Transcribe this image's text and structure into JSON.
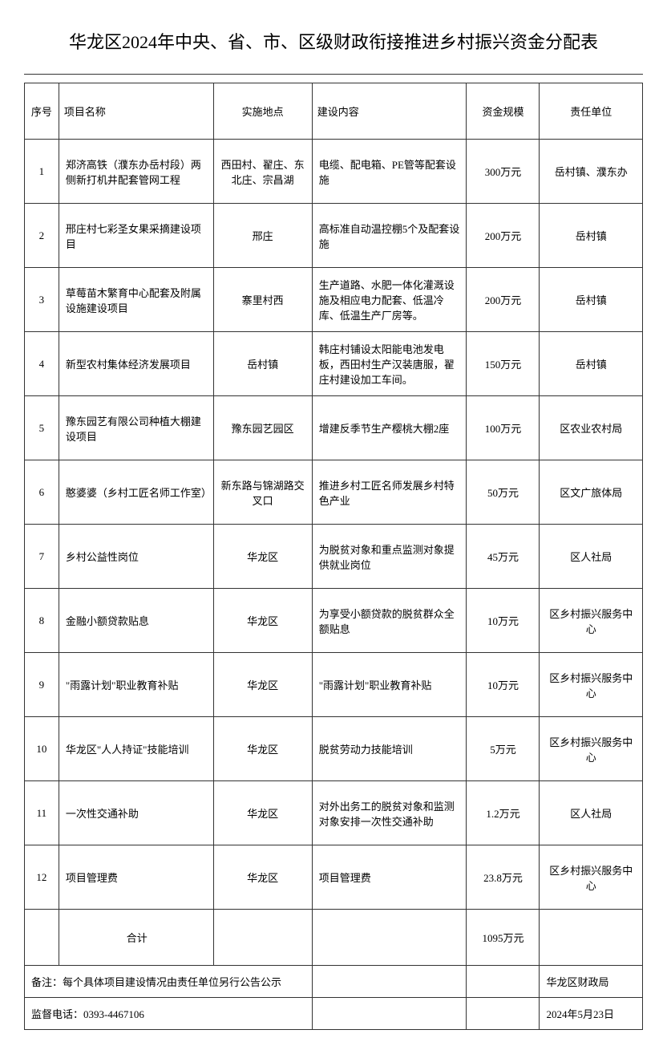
{
  "title": "华龙区2024年中央、省、市、区级财政衔接推进乡村振兴资金分配表",
  "headers": {
    "num": "序号",
    "name": "项目名称",
    "loc": "实施地点",
    "content": "建设内容",
    "amount": "资金规模",
    "dept": "责任单位"
  },
  "rows": [
    {
      "num": "1",
      "name": "郑济高铁（濮东办岳村段）两侧新打机井配套管网工程",
      "loc": "西田村、翟庄、东北庄、宗昌湖",
      "content": "电缆、配电箱、PE管等配套设施",
      "amount": "300万元",
      "dept": "岳村镇、濮东办"
    },
    {
      "num": "2",
      "name": "邢庄村七彩圣女果采摘建设项目",
      "loc": "邢庄",
      "content": "高标准自动温控棚5个及配套设施",
      "amount": "200万元",
      "dept": "岳村镇"
    },
    {
      "num": "3",
      "name": "草莓苗木繁育中心配套及附属设施建设项目",
      "loc": "寨里村西",
      "content": "生产道路、水肥一体化灌溉设施及相应电力配套、低温冷库、低温生产厂房等。",
      "amount": "200万元",
      "dept": "岳村镇"
    },
    {
      "num": "4",
      "name": "新型农村集体经济发展项目",
      "loc": "岳村镇",
      "content": "韩庄村铺设太阳能电池发电板，西田村生产汉装唐服，翟庄村建设加工车间。",
      "amount": "150万元",
      "dept": "岳村镇"
    },
    {
      "num": "5",
      "name": "豫东园艺有限公司种植大棚建设项目",
      "loc": "豫东园艺园区",
      "content": "增建反季节生产樱桃大棚2座",
      "amount": "100万元",
      "dept": "区农业农村局"
    },
    {
      "num": "6",
      "name": "憨婆婆（乡村工匠名师工作室）",
      "loc": "新东路与锦湖路交叉口",
      "content": "推进乡村工匠名师发展乡村特色产业",
      "amount": "50万元",
      "dept": "区文广旅体局"
    },
    {
      "num": "7",
      "name": "乡村公益性岗位",
      "loc": "华龙区",
      "content": "为脱贫对象和重点监测对象提供就业岗位",
      "amount": "45万元",
      "dept": "区人社局"
    },
    {
      "num": "8",
      "name": "金融小额贷款贴息",
      "loc": "华龙区",
      "content": "为享受小额贷款的脱贫群众全额贴息",
      "amount": "10万元",
      "dept": "区乡村振兴服务中心"
    },
    {
      "num": "9",
      "name": "\"雨露计划\"职业教育补贴",
      "loc": "华龙区",
      "content": "\"雨露计划\"职业教育补贴",
      "amount": "10万元",
      "dept": "区乡村振兴服务中心"
    },
    {
      "num": "10",
      "name": "华龙区\"人人持证\"技能培训",
      "loc": "华龙区",
      "content": "脱贫劳动力技能培训",
      "amount": "5万元",
      "dept": "区乡村振兴服务中心"
    },
    {
      "num": "11",
      "name": "一次性交通补助",
      "loc": "华龙区",
      "content": "对外出务工的脱贫对象和监测对象安排一次性交通补助",
      "amount": "1.2万元",
      "dept": "区人社局"
    },
    {
      "num": "12",
      "name": "项目管理费",
      "loc": "华龙区",
      "content": "项目管理费",
      "amount": "23.8万元",
      "dept": "区乡村振兴服务中心"
    }
  ],
  "total": {
    "label": "合计",
    "amount": "1095万元"
  },
  "footer": {
    "note": "备注：每个具体项目建设情况由责任单位另行公告公示",
    "issuer": "华龙区财政局",
    "phone": "监督电话：0393-4467106",
    "date": "2024年5月23日"
  }
}
